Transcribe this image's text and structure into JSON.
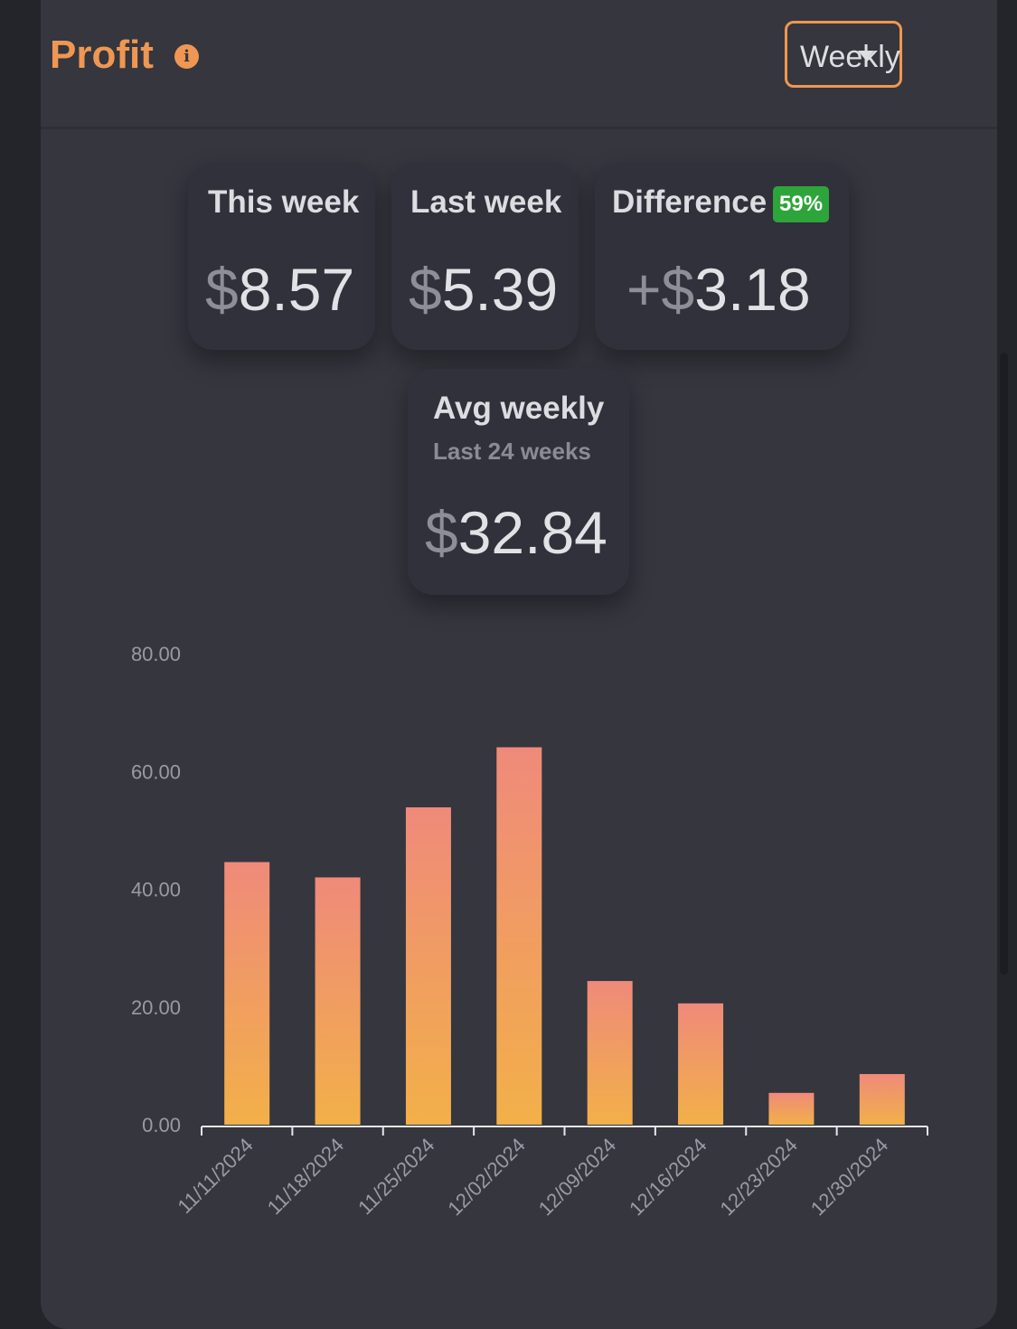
{
  "header": {
    "title": "Profit",
    "info_icon": "info-icon",
    "period_select": {
      "selected": "Weekly",
      "icon": "chevron-down-icon"
    }
  },
  "stats": {
    "this_week": {
      "label": "This week",
      "currency": "$",
      "value": "8.57"
    },
    "last_week": {
      "label": "Last week",
      "currency": "$",
      "value": "5.39"
    },
    "difference": {
      "label": "Difference",
      "badge": "59%",
      "sign": "+",
      "currency": "$",
      "value": "3.18"
    },
    "avg_weekly": {
      "label": "Avg weekly",
      "sublabel": "Last 24 weeks",
      "currency": "$",
      "value": "32.84"
    }
  },
  "colors": {
    "accent": "#ef9752",
    "card": "#35363e",
    "badge_green": "#2ea53a",
    "bar_top": "#ef8a7a",
    "bar_bottom": "#f2b049"
  },
  "chart_data": {
    "type": "bar",
    "categories": [
      "11/11/2024",
      "11/18/2024",
      "11/25/2024",
      "12/02/2024",
      "12/09/2024",
      "12/16/2024",
      "12/23/2024",
      "12/30/2024"
    ],
    "values": [
      44.6,
      42.0,
      53.9,
      64.1,
      24.4,
      20.6,
      5.4,
      8.6
    ],
    "y_ticks": [
      "0.00",
      "20.00",
      "40.00",
      "60.00",
      "80.00"
    ],
    "ylim": [
      0,
      80
    ],
    "grid": false,
    "legend": "none"
  }
}
